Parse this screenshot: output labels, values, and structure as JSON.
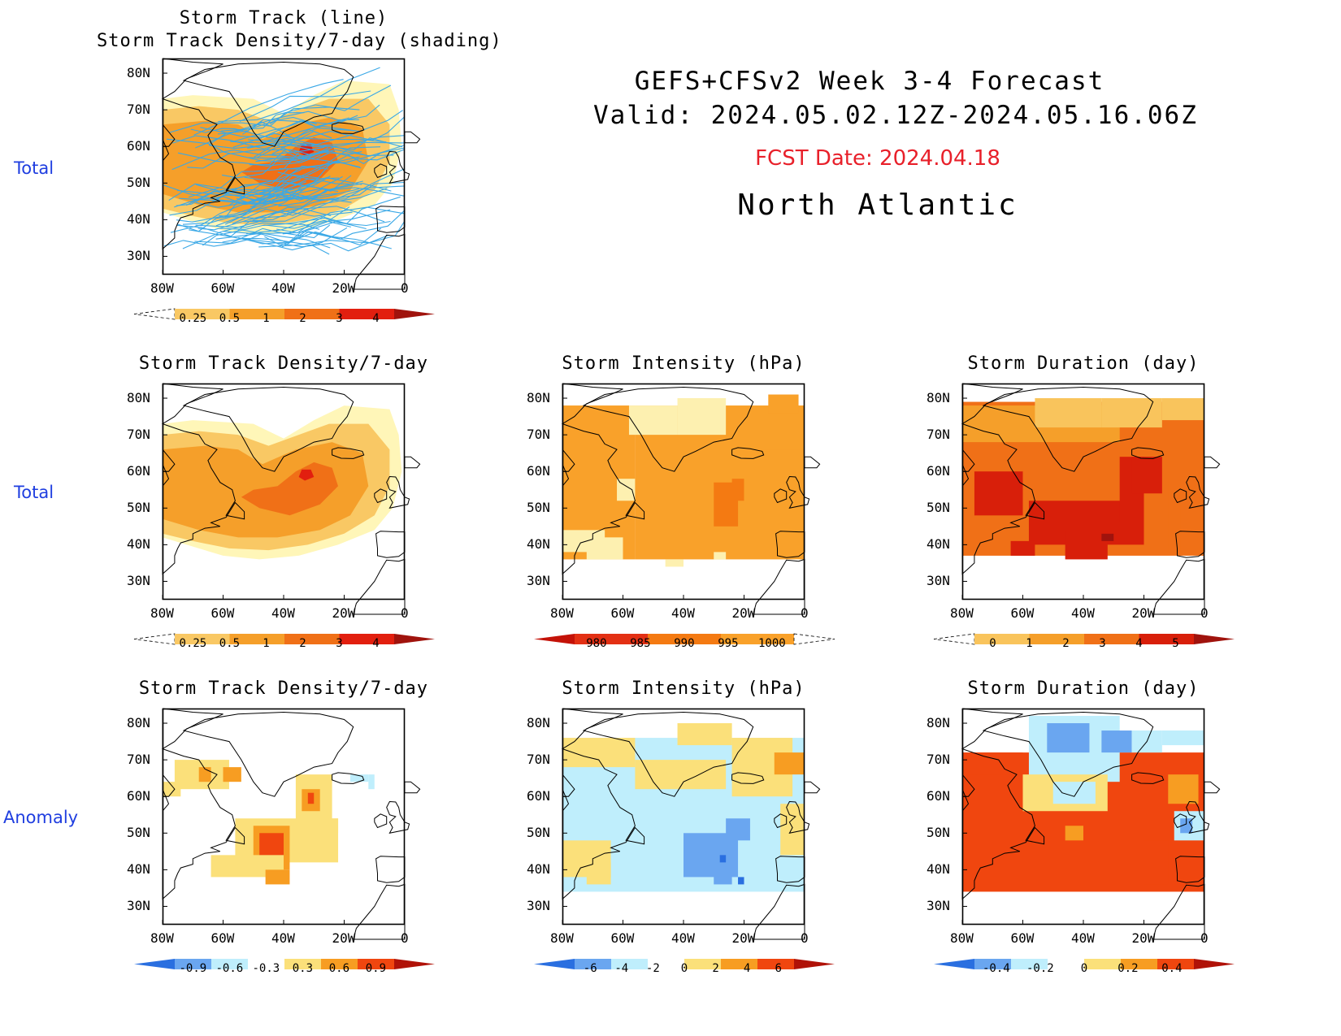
{
  "header": {
    "line1": "GEFS+CFSv2 Week 3-4 Forecast",
    "line2": "Valid: 2024.05.02.12Z-2024.05.16.06Z",
    "fcst_date": "FCST Date: 2024.04.18",
    "region": "North Atlantic"
  },
  "row_labels": [
    "Total",
    "Total",
    "Anomaly"
  ],
  "axes": {
    "lat_ticks": [
      "80N",
      "70N",
      "60N",
      "50N",
      "40N",
      "30N"
    ],
    "lon_ticks": [
      "80W",
      "60W",
      "40W",
      "20W",
      "0"
    ]
  },
  "colors": {
    "density": [
      "#fff6b8",
      "#f9c864",
      "#f59f2a",
      "#f07017",
      "#e21f0f",
      "#a0130d"
    ],
    "intensity": [
      "#c41208",
      "#e33014",
      "#f47a12",
      "#f9a12a",
      "#fdf0b0"
    ],
    "duration": [
      "#fdf0b0",
      "#f9c45c",
      "#f59f2a",
      "#f07017",
      "#d81f0a",
      "#a0130d"
    ],
    "anom": [
      "#2a6fe0",
      "#6aa6f0",
      "#bfeefc",
      "#ffffff",
      "#fbe07a",
      "#f79d22",
      "#f0460f",
      "#b01208"
    ],
    "track_line": "#3aa8e6",
    "row_label": "#1f3ee0",
    "fcst_date": "#e8202a"
  },
  "panels": [
    {
      "id": "p-track",
      "title_lines": [
        "Storm Track (line)",
        "Storm Track Density/7-day (shading)"
      ],
      "field": "density",
      "cb_labels": [
        "0.25",
        "0.5",
        "1",
        "2",
        "3",
        "4"
      ],
      "cb_colors": "density",
      "cb_left_dashed": true,
      "cb_right_dashed": false
    },
    {
      "id": "p-dens-total",
      "title_lines": [
        "Storm Track Density/7-day"
      ],
      "field": "density",
      "cb_labels": [
        "0.25",
        "0.5",
        "1",
        "2",
        "3",
        "4"
      ],
      "cb_colors": "density",
      "cb_left_dashed": true,
      "cb_right_dashed": false
    },
    {
      "id": "p-int-total",
      "title_lines": [
        "Storm Intensity (hPa)"
      ],
      "field": "intensity",
      "cb_labels": [
        "980",
        "985",
        "990",
        "995",
        "1000"
      ],
      "cb_colors": "intensity",
      "cb_left_dashed": false,
      "cb_right_dashed": true
    },
    {
      "id": "p-dur-total",
      "title_lines": [
        "Storm Duration (day)"
      ],
      "field": "duration",
      "cb_labels": [
        "0",
        "1",
        "2",
        "3",
        "4",
        "5"
      ],
      "cb_colors": "duration",
      "cb_left_dashed": true,
      "cb_right_dashed": false
    },
    {
      "id": "p-dens-anom",
      "title_lines": [
        "Storm Track Density/7-day"
      ],
      "field": "dens-anom",
      "cb_labels": [
        "-0.9",
        "-0.6",
        "-0.3",
        "0.3",
        "0.6",
        "0.9"
      ],
      "cb_colors": "anom",
      "cb_left_dashed": false,
      "cb_right_dashed": false
    },
    {
      "id": "p-int-anom",
      "title_lines": [
        "Storm Intensity (hPa)"
      ],
      "field": "int-anom",
      "cb_labels": [
        "-6",
        "-4",
        "-2",
        "0",
        "2",
        "4",
        "6"
      ],
      "cb_colors": "anom",
      "cb_left_dashed": false,
      "cb_right_dashed": false
    },
    {
      "id": "p-dur-anom",
      "title_lines": [
        "Storm Duration (day)"
      ],
      "field": "dur-anom",
      "cb_labels": [
        "-0.4",
        "-0.2",
        "0",
        "0.2",
        "0.4"
      ],
      "cb_colors": "anom",
      "cb_left_dashed": false,
      "cb_right_dashed": false
    }
  ]
}
